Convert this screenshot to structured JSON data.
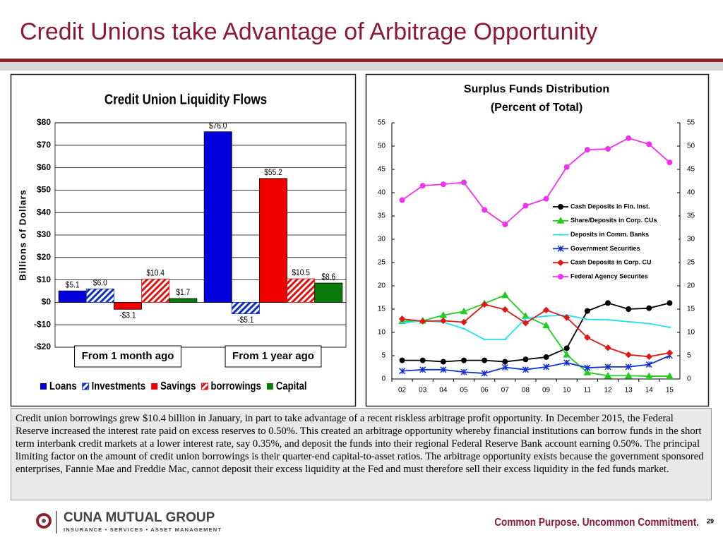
{
  "header": {
    "title": "Credit Unions take Advantage of Arbitrage Opportunity"
  },
  "chart_data": [
    {
      "type": "bar",
      "title": "Credit Union Liquidity Flows",
      "y_label": "Billions of Dollars",
      "categories": [
        "From 1 month ago",
        "From 1 year ago"
      ],
      "series": [
        {
          "name": "Loans",
          "color": "#0000dd",
          "pattern": "solid",
          "values": [
            5.1,
            76.0
          ],
          "value_labels": [
            "$5.1",
            "$76.0"
          ]
        },
        {
          "name": "Investments",
          "color": "#1030c0",
          "pattern": "hatch",
          "values": [
            6.0,
            -5.1
          ],
          "value_labels": [
            "$6.0",
            "-$5.1"
          ]
        },
        {
          "name": "Savings",
          "color": "#ee0000",
          "pattern": "solid",
          "values": [
            -3.1,
            55.2
          ],
          "value_labels": [
            "-$3.1",
            "$55.2"
          ]
        },
        {
          "name": "borrowings",
          "color": "#e01010",
          "pattern": "hatch",
          "values": [
            10.4,
            10.5
          ],
          "value_labels": [
            "$10.4",
            "$10.5"
          ]
        },
        {
          "name": "Capital",
          "color": "#0a7a0a",
          "pattern": "solid",
          "values": [
            1.7,
            8.6
          ],
          "value_labels": [
            "$1.7",
            "$8.6"
          ]
        }
      ],
      "ylim": [
        -20,
        80
      ],
      "yticks": [
        {
          "value": -20,
          "label": "-$20"
        },
        {
          "value": -10,
          "label": "-$10"
        },
        {
          "value": 0,
          "label": "$0"
        },
        {
          "value": 10,
          "label": "$10"
        },
        {
          "value": 20,
          "label": "$20"
        },
        {
          "value": 30,
          "label": "$30"
        },
        {
          "value": 40,
          "label": "$40"
        },
        {
          "value": 50,
          "label": "$50"
        },
        {
          "value": 60,
          "label": "$60"
        },
        {
          "value": 70,
          "label": "$70"
        },
        {
          "value": 80,
          "label": "$80"
        }
      ],
      "grid": true,
      "legend": "bottom"
    },
    {
      "type": "line",
      "title": "Surplus Funds Distribution",
      "subtitle": "(Percent of Total)",
      "categories": [
        "02",
        "03",
        "04",
        "05",
        "06",
        "07",
        "08",
        "09",
        "10",
        "11",
        "12",
        "13",
        "14",
        "15"
      ],
      "series": [
        {
          "name": "Cash Deposits in Fin. Inst.",
          "color": "#000000",
          "marker": "circle",
          "values": [
            4,
            4,
            3.7,
            4,
            4,
            3.7,
            4.2,
            4.7,
            6.6,
            14.6,
            16.3,
            15,
            15.2,
            16.3
          ]
        },
        {
          "name": "Share/Deposits in Corp. CUs",
          "color": "#22cc22",
          "marker": "triangle",
          "values": [
            12.4,
            12.5,
            13.7,
            14.5,
            16.2,
            18,
            13.5,
            11.5,
            5.2,
            1.4,
            0.7,
            0.7,
            0.6,
            0.6
          ]
        },
        {
          "name": "Deposits in Comm. Banks",
          "color": "#22e0f0",
          "marker": "dash",
          "values": [
            12,
            12.5,
            12.2,
            10.8,
            8.5,
            8.5,
            13,
            13.5,
            13.7,
            12.8,
            12.7,
            12.3,
            11.9,
            11.1
          ]
        },
        {
          "name": "Government Securities",
          "color": "#1030d0",
          "marker": "star",
          "values": [
            1.7,
            2,
            2,
            1.5,
            1.2,
            2.5,
            2,
            2.6,
            3.5,
            2.4,
            2.6,
            2.6,
            3.1,
            5
          ]
        },
        {
          "name": "Cash Deposits in Corp. CU",
          "color": "#e01818",
          "marker": "diamond",
          "values": [
            12.9,
            12.4,
            12.5,
            12.2,
            16,
            14.9,
            12,
            14.8,
            13.2,
            8.9,
            6.7,
            5.2,
            4.8,
            5.6
          ]
        },
        {
          "name": "Federal Agency Securites",
          "color": "#ee33ee",
          "marker": "circle",
          "values": [
            38.4,
            41.5,
            41.8,
            42.2,
            36.3,
            33.2,
            37.2,
            38.7,
            45.5,
            49.2,
            49.4,
            51.7,
            50.4,
            46.5
          ]
        }
      ],
      "ylim": [
        0,
        55
      ],
      "yticks": [
        0,
        5,
        10,
        15,
        20,
        25,
        30,
        35,
        40,
        45,
        50,
        55
      ],
      "y2lim": [
        0,
        55
      ],
      "y2ticks": [
        0,
        5,
        10,
        15,
        20,
        25,
        30,
        35,
        40,
        45,
        50,
        55
      ],
      "grid": false,
      "legend": "right"
    }
  ],
  "body_text": "Credit union borrowings grew $10.4 billion in January, in part to take advantage of a recent riskless arbitrage profit opportunity. In December 2015, the Federal Reserve increased the interest rate paid on excess reserves to 0.50%. This created an arbitrage opportunity whereby financial institutions can borrow funds in the short term interbank credit markets at a lower interest rate, say 0.35%, and deposit the funds into their regional Federal Reserve Bank account earning 0.50%. The principal limiting factor on the amount of credit union borrowings is their quarter-end capital-to-asset ratios. The arbitrage opportunity exists because the government sponsored enterprises, Fannie Mae and Freddie Mac, cannot deposit their excess liquidity at the Fed and must therefore sell their excess liquidity in the fed funds market.",
  "footer": {
    "logo": "CUNA MUTUAL GROUP",
    "logo_tagline": "INSURANCE • SERVICES • ASSET MANAGEMENT",
    "slogan": "Common Purpose. Uncommon Commitment.",
    "page_number": "29"
  }
}
